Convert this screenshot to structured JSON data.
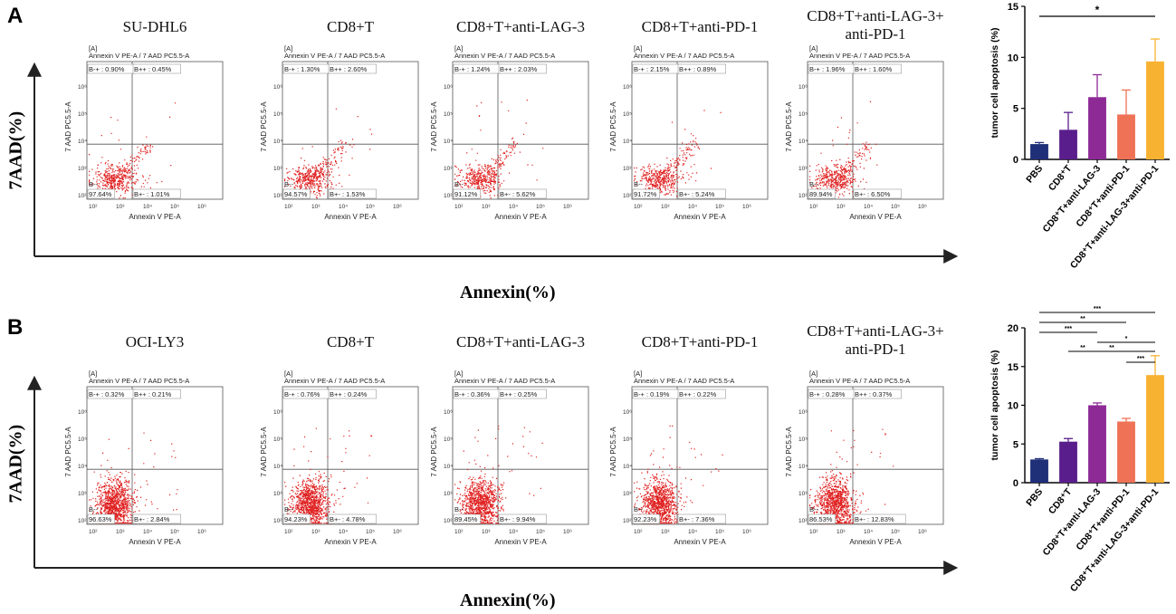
{
  "panels": [
    {
      "letter": "A",
      "y_axis_label": "7AAD(%)",
      "x_axis_label": "Annexin(%)",
      "flow_plots": [
        {
          "title": "SU-DHL6",
          "gate": "[A]",
          "plot_label": "Annexin V PE-A / 7 AAD PC5.5-A",
          "ul": "B-+ : 0.90%",
          "ur": "B++ : 0.45%",
          "ll_label": "B--",
          "ll": "97.64%",
          "lr": "B+- : 1.01%",
          "xlabel": "Annexin V PE-A",
          "ylabel": "7 AAD PC5.5-A"
        },
        {
          "title": "CD8+T",
          "gate": "[A]",
          "plot_label": "Annexin V PE-A / 7 AAD PC5.5-A",
          "ul": "B-+ : 1.30%",
          "ur": "B++ : 2.60%",
          "ll_label": "B--",
          "ll": "94.57%",
          "lr": "B+- : 1.53%",
          "xlabel": "Annexin V PE-A",
          "ylabel": "7 AAD PC5.5-A"
        },
        {
          "title": "CD8+T+anti-LAG-3",
          "gate": "[A]",
          "plot_label": "Annexin V PE-A / 7 AAD PC5.5-A",
          "ul": "B-+ : 1.24%",
          "ur": "B++ : 2.03%",
          "ll_label": "B--",
          "ll": "91.12%",
          "lr": "B+- : 5.62%",
          "xlabel": "Annexin V PE-A",
          "ylabel": "7 AAD PC5.5-A"
        },
        {
          "title": "CD8+T+anti-PD-1",
          "gate": "[A]",
          "plot_label": "Annexin V PE-A / 7 AAD PC5.5-A",
          "ul": "B-+ : 2.15%",
          "ur": "B++ : 0.89%",
          "ll_label": "B--",
          "ll": "91.72%",
          "lr": "B+- : 5.24%",
          "xlabel": "Annexin V PE-A",
          "ylabel": "7 AAD PC5.5-A"
        },
        {
          "title": "CD8+T+anti-LAG-3+",
          "title2": "anti-PD-1",
          "gate": "[A]",
          "plot_label": "Annexin V PE-A / 7 AAD PC5.5-A",
          "ul": "B-+ : 1.96%",
          "ur": "B++ : 1.60%",
          "ll_label": "B--",
          "ll": "89.94%",
          "lr": "B+- : 6.50%",
          "xlabel": "Annexin V PE-A",
          "ylabel": "7 AAD PC5.5-A"
        }
      ]
    },
    {
      "letter": "B",
      "y_axis_label": "7AAD(%)",
      "x_axis_label": "Annexin(%)",
      "flow_plots": [
        {
          "title": "OCI-LY3",
          "gate": "[A]",
          "plot_label": "Annexin V PE-A / 7 AAD PC5.5-A",
          "ul": "B-+ : 0.32%",
          "ur": "B++ : 0.21%",
          "ll_label": "B--",
          "ll": "96.63%",
          "lr": "B+- : 2.84%",
          "xlabel": "Annexin V PE-A",
          "ylabel": "7 AAD PC5.5-A"
        },
        {
          "title": "CD8+T",
          "gate": "[A]",
          "plot_label": "Annexin V PE-A / 7 AAD PC5.5-A",
          "ul": "B-+ : 0.76%",
          "ur": "B++ : 0.24%",
          "ll_label": "B--",
          "ll": "94.23%",
          "lr": "B+- : 4.78%",
          "xlabel": "Annexin V PE-A",
          "ylabel": "7 AAD PC5.5-A"
        },
        {
          "title": "CD8+T+anti-LAG-3",
          "gate": "[A]",
          "plot_label": "Annexin V PE-A / 7 AAD PC5.5-A",
          "ul": "B-+ : 0.36%",
          "ur": "B++ : 0.25%",
          "ll_label": "B--",
          "ll": "89.45%",
          "lr": "B+- : 9.94%",
          "xlabel": "Annexin V PE-A",
          "ylabel": "7 AAD PC5.5-A"
        },
        {
          "title": "CD8+T+anti-PD-1",
          "gate": "[A]",
          "plot_label": "Annexin V PE-A / 7 AAD PC5.5-A",
          "ul": "B-+ : 0.19%",
          "ur": "B++ : 0.22%",
          "ll_label": "B--",
          "ll": "92.23%",
          "lr": "B+- : 7.36%",
          "xlabel": "Annexin V PE-A",
          "ylabel": "7 AAD PC5.5-A"
        },
        {
          "title": "CD8+T+anti-LAG-3+",
          "title2": "anti-PD-1",
          "gate": "[A]",
          "plot_label": "Annexin V PE-A / 7 AAD PC5.5-A",
          "ul": "B-+ : 0.28%",
          "ur": "B++ : 0.37%",
          "ll_label": "B--",
          "ll": "86.53%",
          "lr": "B+- : 12.83%",
          "xlabel": "Annexin V PE-A",
          "ylabel": "7 AAD PC5.5-A"
        }
      ]
    }
  ],
  "tick_labels": {
    "x": [
      "10²",
      "10³",
      "10⁴",
      "10⁵",
      "10⁶"
    ],
    "y": [
      "10²",
      "10³",
      "10⁴",
      "10⁵",
      "10⁶"
    ]
  },
  "colors": {
    "dots": "#e02020",
    "bar_colors": [
      "#1f2f78",
      "#5a1e8c",
      "#8e2a96",
      "#ef7256",
      "#f8b231"
    ]
  },
  "chart_data": [
    {
      "type": "bar",
      "ylabel": "tumor cell apoptosis (%)",
      "ylim": [
        0,
        15
      ],
      "yticks": [
        0,
        5,
        10,
        15
      ],
      "categories": [
        "PBS",
        "CD8⁺T",
        "CD8⁺T+anti-LAG-3",
        "CD8⁺T+anti-PD-1",
        "CD8⁺T+anti-LAG-3+anti-PD-1"
      ],
      "values": [
        1.5,
        2.9,
        6.1,
        4.4,
        9.6
      ],
      "errors": [
        0.15,
        1.7,
        2.2,
        2.4,
        2.2
      ],
      "significance": [
        {
          "from": 0,
          "to": 4,
          "label": "*"
        }
      ]
    },
    {
      "type": "bar",
      "ylabel": "tumor cell apoptosis (%)",
      "ylim": [
        0,
        20
      ],
      "yticks": [
        0,
        5,
        10,
        15,
        20
      ],
      "categories": [
        "PBS",
        "CD8⁺T",
        "CD8⁺T+anti-LAG-3",
        "CD8⁺T+anti-PD-1",
        "CD8⁺T+anti-LAG-3+anti-PD-1"
      ],
      "values": [
        3.0,
        5.3,
        10.0,
        7.9,
        13.9
      ],
      "errors": [
        0.1,
        0.4,
        0.3,
        0.4,
        2.5
      ],
      "significance": [
        {
          "from": 0,
          "to": 4,
          "label": "***"
        },
        {
          "from": 0,
          "to": 3,
          "label": "**"
        },
        {
          "from": 0,
          "to": 2,
          "label": "***"
        },
        {
          "from": 1,
          "to": 4,
          "label": "**"
        },
        {
          "from": 1,
          "to": 2,
          "label": "**"
        },
        {
          "from": 2,
          "to": 4,
          "label": "*"
        },
        {
          "from": 3,
          "to": 4,
          "label": "***"
        }
      ]
    }
  ]
}
